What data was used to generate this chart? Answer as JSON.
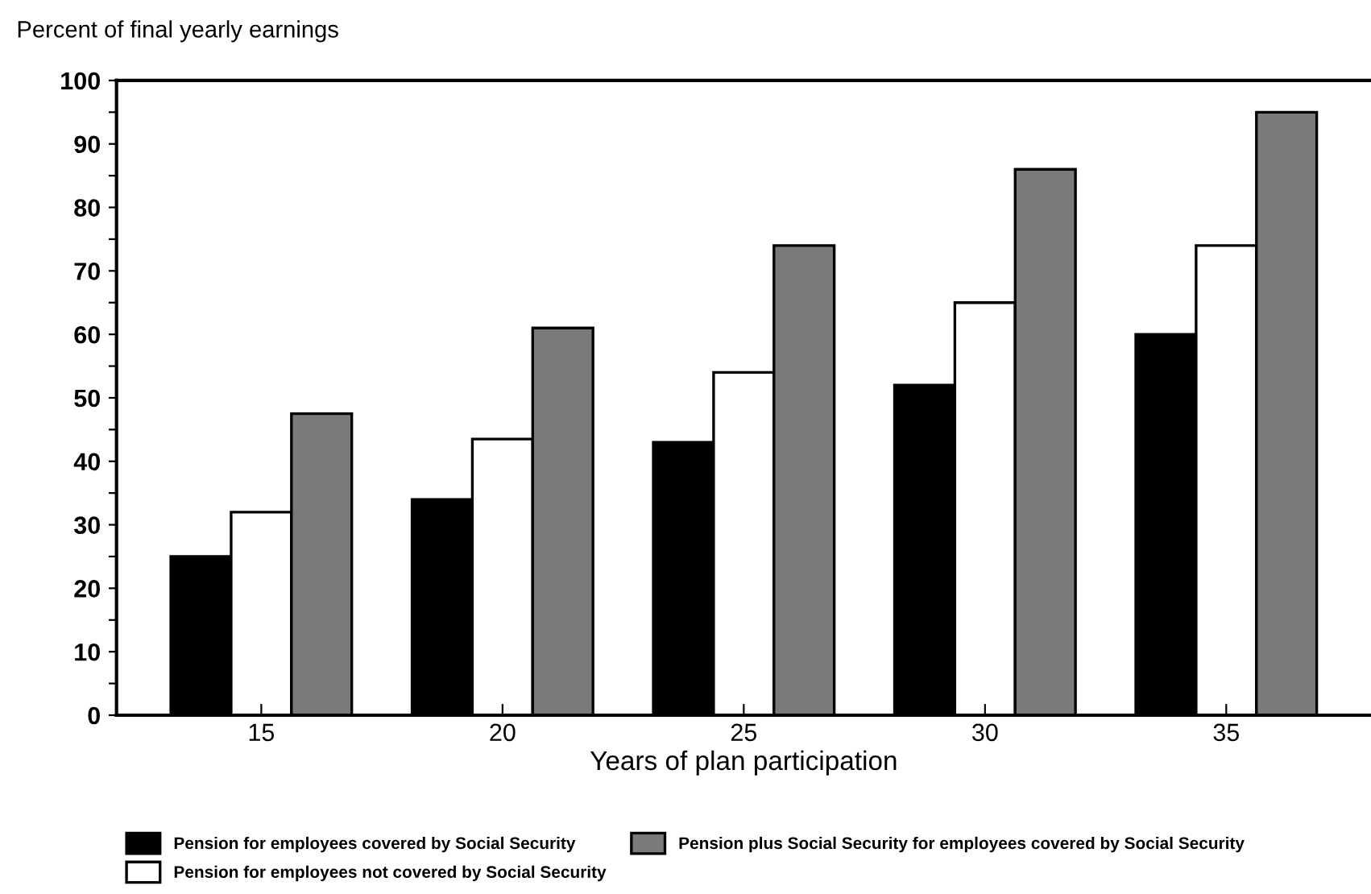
{
  "chart_data": {
    "type": "bar",
    "ylabel": "Percent of final yearly earnings",
    "xlabel": "Years of plan participation",
    "categories": [
      "15",
      "20",
      "25",
      "30",
      "35"
    ],
    "series": [
      {
        "name": "Pension for employees covered by Social Security",
        "color": "#000000",
        "values": [
          25,
          34,
          43,
          52,
          60
        ]
      },
      {
        "name": "Pension for employees not covered by Social Security",
        "color": "#ffffff",
        "values": [
          32,
          43.5,
          54,
          65,
          74
        ]
      },
      {
        "name": "Pension plus Social Security for employees covered by Social Security",
        "color": "#7a7a7a",
        "values": [
          47.5,
          61,
          74,
          86,
          95
        ]
      }
    ],
    "ylim": [
      0,
      100
    ],
    "yticks": [
      0,
      {
        "value": 5,
        "label": null
      },
      10,
      {
        "value": 15,
        "label": null
      },
      20,
      {
        "value": 25,
        "label": null
      },
      30,
      {
        "value": 35,
        "label": null
      },
      40,
      {
        "value": 45,
        "label": null
      },
      50,
      {
        "value": 55,
        "label": null
      },
      60,
      {
        "value": 65,
        "label": null
      },
      70,
      {
        "value": 75,
        "label": null
      },
      80,
      {
        "value": 85,
        "label": null
      },
      90,
      {
        "value": 95,
        "label": null
      },
      100
    ],
    "legend": "bottom",
    "grid": false
  }
}
